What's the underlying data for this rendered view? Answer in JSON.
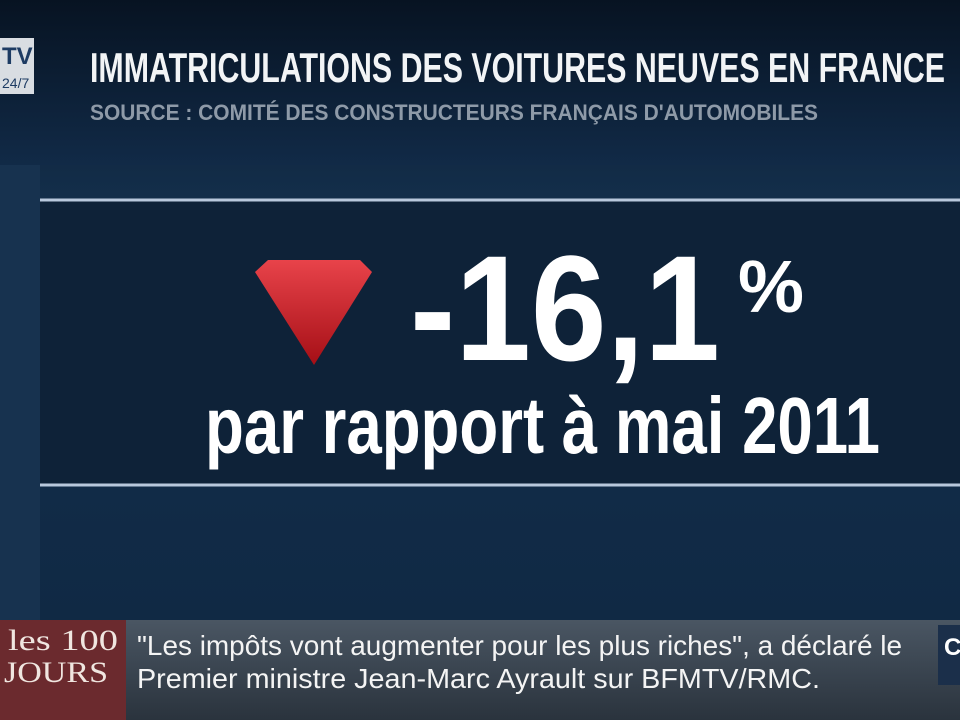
{
  "logo": {
    "top": "TV",
    "bottom": "24/7"
  },
  "header": {
    "title": "IMMATRICULATIONS DES VOITURES NEUVES EN FRANCE",
    "source": "SOURCE : COMITÉ DES CONSTRUCTEURS FRANÇAIS D'AUTOMOBILES"
  },
  "figure": {
    "value": "-16,1",
    "unit": "%",
    "caption": "par rapport à mai 2011"
  },
  "ticker": {
    "badge_top": "les 100",
    "badge_bottom": "JOURS",
    "lines": [
      "\"Les impôts vont augmenter pour les plus riches\", a déclaré le",
      "Premier ministre Jean-Marc Ayrault sur BFMTV/RMC."
    ],
    "corner": "C"
  }
}
